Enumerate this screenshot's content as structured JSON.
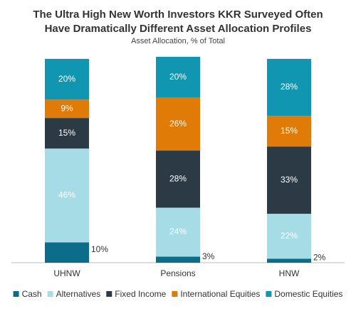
{
  "chart_data": {
    "type": "stacked-bar",
    "title": [
      "The Ultra High New Worth Investors KKR Surveyed Often",
      "Have Dramatically Different Asset Allocation Profiles"
    ],
    "subtitle": "Asset Allocation, % of Total",
    "categories": [
      "UHNW",
      "Pensions",
      "HNW"
    ],
    "series": [
      {
        "name": "Cash",
        "color": "#0b6d8a",
        "values": [
          10,
          3,
          2
        ],
        "value_labels": [
          "10%",
          "3%",
          "2%"
        ]
      },
      {
        "name": "Alternatives",
        "color": "#a6dce6",
        "values": [
          46,
          24,
          22
        ],
        "value_labels": [
          "46%",
          "24%",
          "22%"
        ]
      },
      {
        "name": "Fixed Income",
        "color": "#2c3a46",
        "values": [
          15,
          28,
          33
        ],
        "value_labels": [
          "15%",
          "28%",
          "33%"
        ]
      },
      {
        "name": "International Equities",
        "color": "#df7b06",
        "values": [
          9,
          26,
          15
        ],
        "value_labels": [
          "9%",
          "26%",
          "15%"
        ]
      },
      {
        "name": "Domestic Equities",
        "color": "#1196b1",
        "values": [
          20,
          20,
          28
        ],
        "value_labels": [
          "20%",
          "20%",
          "28%"
        ]
      }
    ]
  }
}
